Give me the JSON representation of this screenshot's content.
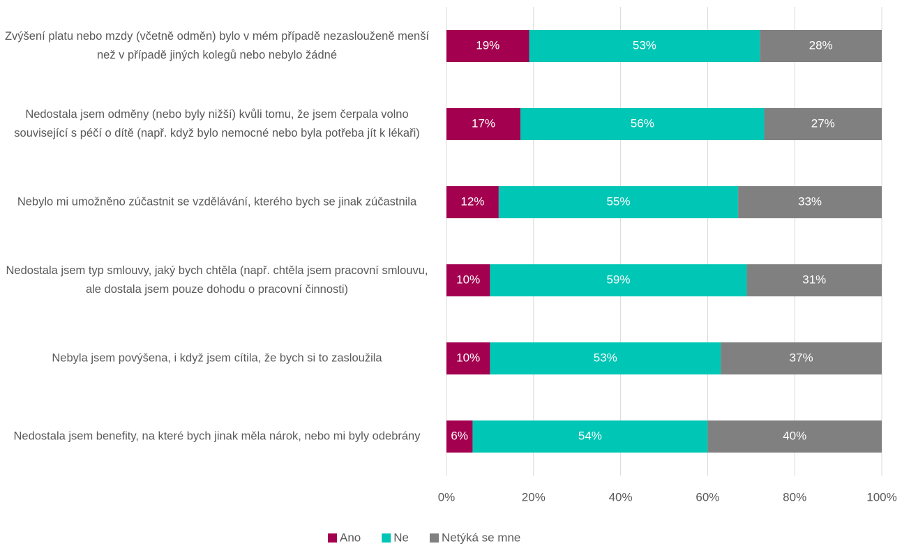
{
  "chart_data": {
    "type": "stacked-bar-horizontal",
    "categories": [
      "Zvýšení platu nebo mzdy (včetně odměn) bylo v mém případě nezaslouženě menší než v případě jiných kolegů nebo nebylo žádné",
      "Nedostala jsem odměny (nebo byly nižší) kvůli tomu, že jsem čerpala volno související s péčí o dítě (např. když bylo nemocné nebo byla potřeba jít k lékaři)",
      "Nebylo mi umožněno zúčastnit se vzdělávání, kterého bych se jinak zúčastnila",
      "Nedostala jsem typ smlouvy, jaký bych chtěla (např. chtěla jsem pracovní smlouvu, ale dostala jsem pouze dohodu o pracovní činnosti)",
      "Nebyla jsem povýšena, i když jsem cítila, že bych si to zasloužila",
      "Nedostala jsem benefity, na které bych jinak měla nárok, nebo mi byly odebrány"
    ],
    "series": [
      {
        "name": "Ano",
        "color": "#a3004f",
        "values": [
          19,
          17,
          12,
          10,
          10,
          6
        ],
        "value_labels": [
          "19%",
          "17%",
          "12%",
          "10%",
          "10%",
          "6%"
        ]
      },
      {
        "name": "Ne",
        "color": "#00c6b5",
        "values": [
          53,
          56,
          55,
          59,
          53,
          54
        ],
        "value_labels": [
          "53%",
          "56%",
          "55%",
          "59%",
          "53%",
          "54%"
        ]
      },
      {
        "name": "Netýká se mne",
        "color": "#808080",
        "values": [
          28,
          27,
          33,
          31,
          37,
          40
        ],
        "value_labels": [
          "28%",
          "27%",
          "33%",
          "31%",
          "37%",
          "40%"
        ]
      }
    ],
    "xlim": [
      0,
      100
    ],
    "xticks": [
      {
        "value": 0,
        "label": "0%"
      },
      {
        "value": 20,
        "label": "20%"
      },
      {
        "value": 40,
        "label": "40%"
      },
      {
        "value": 60,
        "label": "60%"
      },
      {
        "value": 80,
        "label": "80%"
      },
      {
        "value": 100,
        "label": "100%"
      }
    ],
    "grid": true,
    "legend": "bottom"
  }
}
